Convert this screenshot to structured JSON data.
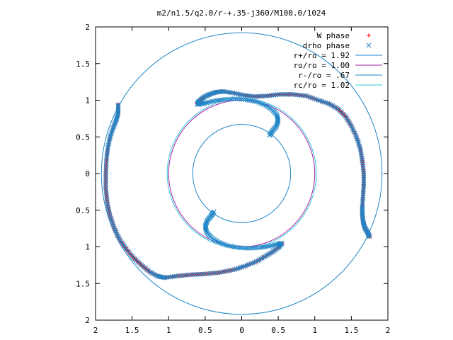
{
  "chart_data": {
    "type": "scatter",
    "title": "m2/n1.5/q2.0/r-+.35-j360/M100.0/1024",
    "xlabel": "",
    "ylabel": "",
    "xlim": [
      -2,
      2
    ],
    "ylim": [
      -2,
      2
    ],
    "x_tick_values": [
      -2,
      -1.5,
      -1,
      -0.5,
      0,
      0.5,
      1,
      1.5,
      2
    ],
    "x_tick_labels": [
      "2",
      "1.5",
      "1",
      "0.5",
      "0",
      "0.5",
      "1",
      "1.5",
      "2"
    ],
    "y_tick_values": [
      2,
      1.5,
      1,
      0.5,
      0,
      -0.5,
      -1,
      -1.5,
      -2
    ],
    "y_tick_labels": [
      "2",
      "1.5",
      "1",
      "0.5",
      "0",
      "0.5",
      "1",
      "1.5",
      "2"
    ],
    "grid": false,
    "legend_position": "top-right",
    "series": [
      {
        "name": "W phase",
        "kind": "points",
        "marker": "+",
        "color": "#ff0000",
        "arms": [
          [
            [
              -0.61,
              0.95
            ],
            [
              -0.58,
              0.99
            ],
            [
              -0.52,
              1.04
            ],
            [
              -0.44,
              1.08
            ],
            [
              -0.35,
              1.11
            ],
            [
              -0.25,
              1.12
            ],
            [
              -0.12,
              1.1
            ],
            [
              0.02,
              1.07
            ],
            [
              0.18,
              1.05
            ],
            [
              0.35,
              1.06
            ],
            [
              0.52,
              1.08
            ],
            [
              0.7,
              1.08
            ],
            [
              0.88,
              1.06
            ],
            [
              1.05,
              1.0
            ],
            [
              1.2,
              0.95
            ],
            [
              1.32,
              0.88
            ],
            [
              1.42,
              0.78
            ],
            [
              1.5,
              0.65
            ],
            [
              1.57,
              0.5
            ],
            [
              1.62,
              0.35
            ],
            [
              1.65,
              0.18
            ],
            [
              1.67,
              0.0
            ],
            [
              1.67,
              -0.15
            ],
            [
              1.66,
              -0.3
            ],
            [
              1.65,
              -0.45
            ],
            [
              1.65,
              -0.55
            ],
            [
              1.66,
              -0.65
            ],
            [
              1.68,
              -0.73
            ],
            [
              1.72,
              -0.8
            ],
            [
              1.75,
              -0.86
            ]
          ],
          [
            [
              0.55,
              -0.95
            ],
            [
              0.5,
              -1.01
            ],
            [
              0.42,
              -1.07
            ],
            [
              0.32,
              -1.13
            ],
            [
              0.2,
              -1.2
            ],
            [
              0.05,
              -1.26
            ],
            [
              -0.1,
              -1.31
            ],
            [
              -0.3,
              -1.35
            ],
            [
              -0.5,
              -1.37
            ],
            [
              -0.7,
              -1.38
            ],
            [
              -0.9,
              -1.4
            ],
            [
              -1.05,
              -1.42
            ],
            [
              -1.15,
              -1.4
            ],
            [
              -1.26,
              -1.34
            ],
            [
              -1.37,
              -1.25
            ],
            [
              -1.48,
              -1.15
            ],
            [
              -1.58,
              -1.03
            ],
            [
              -1.67,
              -0.9
            ],
            [
              -1.74,
              -0.75
            ],
            [
              -1.8,
              -0.58
            ],
            [
              -1.84,
              -0.4
            ],
            [
              -1.86,
              -0.2
            ],
            [
              -1.86,
              0.0
            ],
            [
              -1.85,
              0.2
            ],
            [
              -1.83,
              0.36
            ],
            [
              -1.8,
              0.5
            ],
            [
              -1.76,
              0.62
            ],
            [
              -1.72,
              0.72
            ],
            [
              -1.69,
              0.82
            ],
            [
              -1.69,
              0.94
            ]
          ]
        ]
      },
      {
        "name": "drho phase",
        "kind": "points",
        "marker": "x",
        "color": "#1f86c8",
        "arms": [
          [
            [
              -0.61,
              0.95
            ],
            [
              -0.58,
              0.99
            ],
            [
              -0.52,
              1.04
            ],
            [
              -0.44,
              1.08
            ],
            [
              -0.35,
              1.11
            ],
            [
              -0.25,
              1.12
            ],
            [
              -0.12,
              1.1
            ],
            [
              0.02,
              1.07
            ],
            [
              0.18,
              1.05
            ],
            [
              0.35,
              1.06
            ],
            [
              0.52,
              1.08
            ],
            [
              0.7,
              1.08
            ],
            [
              0.88,
              1.06
            ],
            [
              1.05,
              1.0
            ],
            [
              1.2,
              0.95
            ],
            [
              1.32,
              0.88
            ],
            [
              1.42,
              0.78
            ],
            [
              1.5,
              0.65
            ],
            [
              1.57,
              0.5
            ],
            [
              1.62,
              0.35
            ],
            [
              1.65,
              0.18
            ],
            [
              1.67,
              0.0
            ],
            [
              1.67,
              -0.15
            ],
            [
              1.66,
              -0.3
            ],
            [
              1.65,
              -0.45
            ],
            [
              1.65,
              -0.55
            ],
            [
              1.66,
              -0.65
            ],
            [
              1.68,
              -0.73
            ],
            [
              1.72,
              -0.8
            ],
            [
              1.75,
              -0.86
            ]
          ],
          [
            [
              0.55,
              -0.95
            ],
            [
              0.5,
              -1.01
            ],
            [
              0.42,
              -1.07
            ],
            [
              0.32,
              -1.13
            ],
            [
              0.2,
              -1.2
            ],
            [
              0.05,
              -1.26
            ],
            [
              -0.1,
              -1.31
            ],
            [
              -0.3,
              -1.35
            ],
            [
              -0.5,
              -1.37
            ],
            [
              -0.7,
              -1.38
            ],
            [
              -0.9,
              -1.4
            ],
            [
              -1.05,
              -1.42
            ],
            [
              -1.15,
              -1.4
            ],
            [
              -1.26,
              -1.34
            ],
            [
              -1.37,
              -1.25
            ],
            [
              -1.48,
              -1.15
            ],
            [
              -1.58,
              -1.03
            ],
            [
              -1.67,
              -0.9
            ],
            [
              -1.74,
              -0.75
            ],
            [
              -1.8,
              -0.58
            ],
            [
              -1.84,
              -0.4
            ],
            [
              -1.86,
              -0.2
            ],
            [
              -1.86,
              0.0
            ],
            [
              -1.85,
              0.2
            ],
            [
              -1.83,
              0.36
            ],
            [
              -1.8,
              0.5
            ],
            [
              -1.76,
              0.62
            ],
            [
              -1.72,
              0.72
            ],
            [
              -1.69,
              0.82
            ],
            [
              -1.69,
              0.94
            ]
          ],
          [
            [
              0.38,
              0.52
            ],
            [
              0.42,
              0.58
            ],
            [
              0.47,
              0.64
            ],
            [
              0.5,
              0.72
            ],
            [
              0.48,
              0.8
            ],
            [
              0.42,
              0.87
            ],
            [
              0.33,
              0.93
            ],
            [
              0.2,
              0.98
            ],
            [
              0.05,
              1.01
            ],
            [
              -0.1,
              1.02
            ],
            [
              -0.25,
              1.01
            ],
            [
              -0.38,
              0.99
            ],
            [
              -0.5,
              0.96
            ],
            [
              -0.6,
              0.94
            ]
          ],
          [
            [
              -0.38,
              -0.52
            ],
            [
              -0.42,
              -0.58
            ],
            [
              -0.47,
              -0.64
            ],
            [
              -0.5,
              -0.72
            ],
            [
              -0.48,
              -0.8
            ],
            [
              -0.42,
              -0.87
            ],
            [
              -0.33,
              -0.93
            ],
            [
              -0.2,
              -0.98
            ],
            [
              -0.05,
              -1.01
            ],
            [
              0.1,
              -1.02
            ],
            [
              0.25,
              -1.01
            ],
            [
              0.38,
              -0.99
            ],
            [
              0.5,
              -0.96
            ],
            [
              0.55,
              -0.95
            ]
          ]
        ]
      },
      {
        "name": "r+/ro = 1.92",
        "kind": "circle",
        "radius": 1.92,
        "color": "#1f86c8"
      },
      {
        "name": "ro/ro = 1.00",
        "kind": "circle",
        "radius": 1.0,
        "color": "#a020a0"
      },
      {
        "name": "r-/ro = .67",
        "kind": "circle",
        "radius": 0.67,
        "color": "#1f86c8"
      },
      {
        "name": "rc/ro = 1.02",
        "kind": "circle",
        "radius": 1.02,
        "color": "#30c8d8"
      }
    ]
  }
}
